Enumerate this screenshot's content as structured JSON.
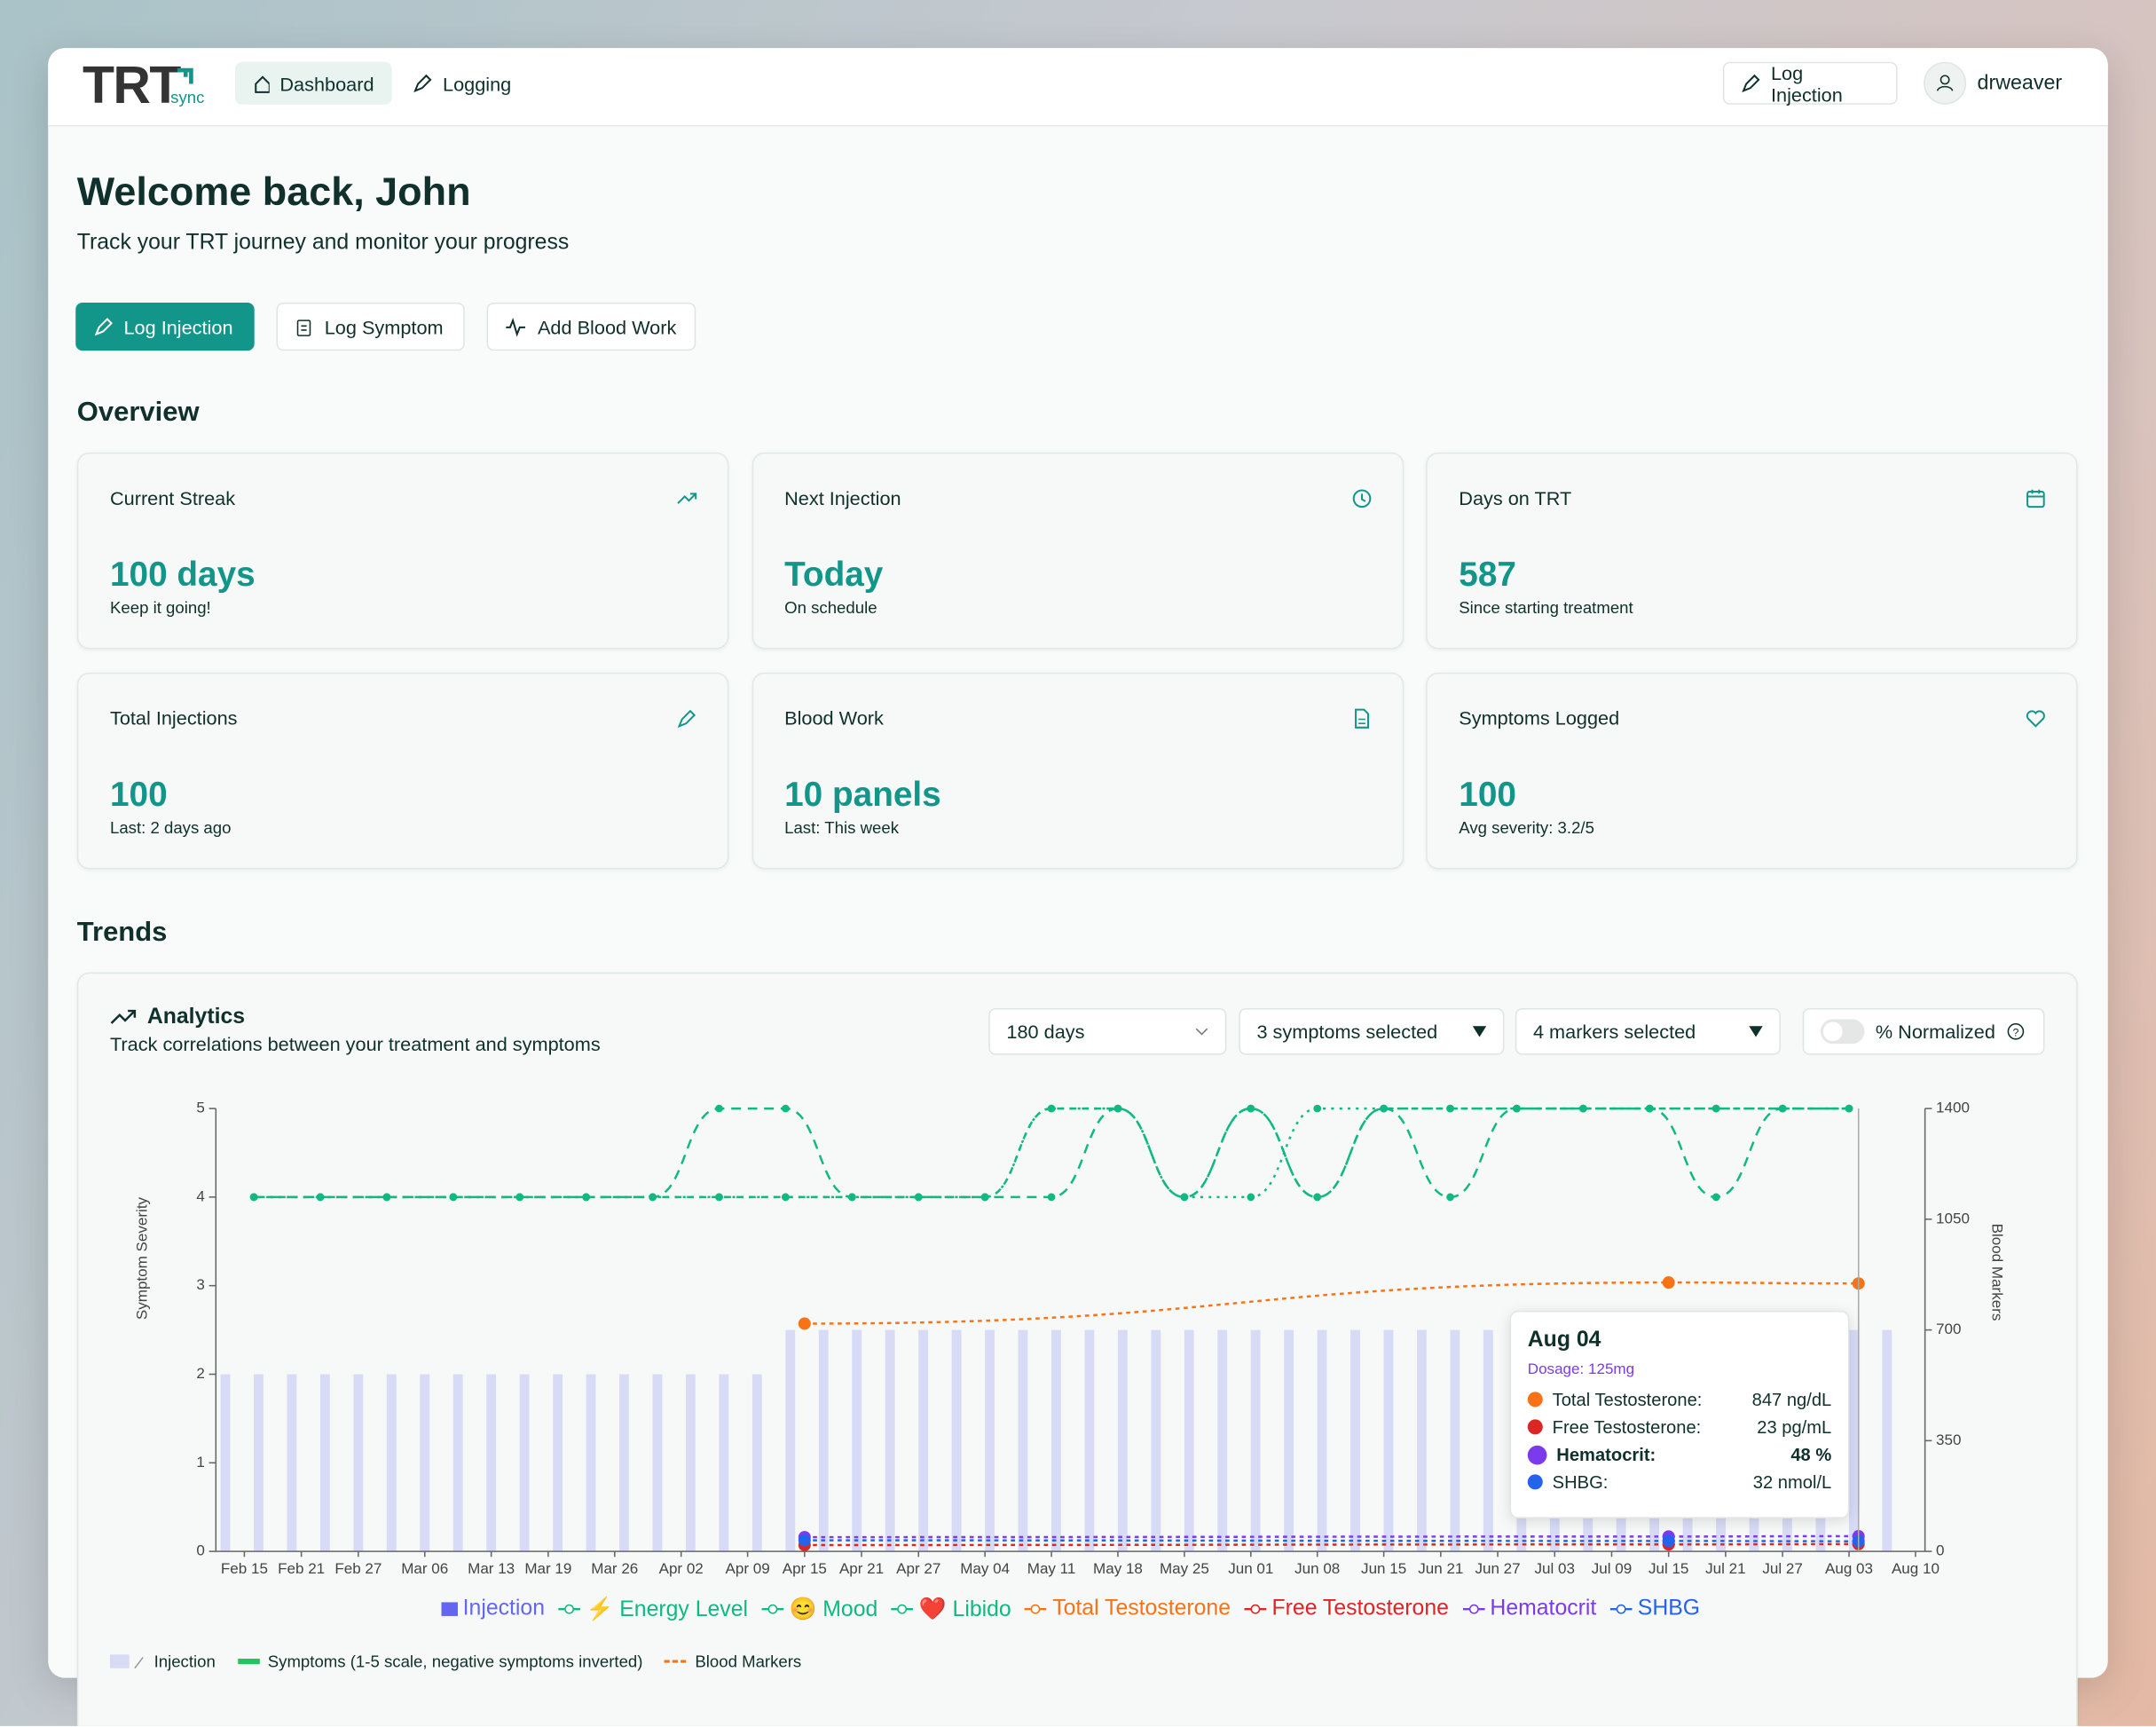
{
  "nav": {
    "brand": "TRT",
    "brand_sub": "sync",
    "links": [
      "Dashboard",
      "Logging"
    ],
    "action": "Log Injection",
    "user": "drweaver"
  },
  "header": {
    "title": "Welcome back, John",
    "subtitle": "Track your TRT journey and monitor your progress"
  },
  "actions": [
    "Log Injection",
    "Log Symptom",
    "Add Blood Work"
  ],
  "overview": {
    "title": "Overview",
    "cards": [
      {
        "label": "Current Streak",
        "value": "100 days",
        "note": "Keep it going!"
      },
      {
        "label": "Next Injection",
        "value": "Today",
        "note": "On schedule"
      },
      {
        "label": "Days on TRT",
        "value": "587",
        "note": "Since starting treatment"
      },
      {
        "label": "Total Injections",
        "value": "100",
        "note": "Last: 2 days ago"
      },
      {
        "label": "Blood Work",
        "value": "10 panels",
        "note": "Last: This week"
      },
      {
        "label": "Symptoms Logged",
        "value": "100",
        "note": "Avg severity: 3.2/5"
      }
    ]
  },
  "trends": {
    "title": "Trends",
    "panel": {
      "title": "Analytics",
      "subtitle": "Track correlations between your treatment and symptoms",
      "range": "180 days",
      "symptoms": "3 symptoms selected",
      "markers": "4 markers selected",
      "toggle": "% Normalized"
    }
  },
  "chart_data": {
    "type": "combo",
    "ylabel": "Symptom Severity",
    "y2label": "Blood Markers",
    "xlim": [
      43,
      223
    ],
    "xticks": [
      {
        "value": 46,
        "label": "Feb 15"
      },
      {
        "value": 52,
        "label": "Feb 21"
      },
      {
        "value": 58,
        "label": "Feb 27"
      },
      {
        "value": 65,
        "label": "Mar 06"
      },
      {
        "value": 72,
        "label": "Mar 13"
      },
      {
        "value": 78,
        "label": "Mar 19"
      },
      {
        "value": 85,
        "label": "Mar 26"
      },
      {
        "value": 92,
        "label": "Apr 02"
      },
      {
        "value": 99,
        "label": "Apr 09"
      },
      {
        "value": 105,
        "label": "Apr 15"
      },
      {
        "value": 111,
        "label": "Apr 21"
      },
      {
        "value": 117,
        "label": "Apr 27"
      },
      {
        "value": 124,
        "label": "May 04"
      },
      {
        "value": 131,
        "label": "May 11"
      },
      {
        "value": 138,
        "label": "May 18"
      },
      {
        "value": 145,
        "label": "May 25"
      },
      {
        "value": 152,
        "label": "Jun 01"
      },
      {
        "value": 159,
        "label": "Jun 08"
      },
      {
        "value": 166,
        "label": "Jun 15"
      },
      {
        "value": 172,
        "label": "Jun 21"
      },
      {
        "value": 178,
        "label": "Jun 27"
      },
      {
        "value": 184,
        "label": "Jul 03"
      },
      {
        "value": 190,
        "label": "Jul 09"
      },
      {
        "value": 196,
        "label": "Jul 15"
      },
      {
        "value": 202,
        "label": "Jul 21"
      },
      {
        "value": 208,
        "label": "Jul 27"
      },
      {
        "value": 215,
        "label": "Aug 03"
      },
      {
        "value": 222,
        "label": "Aug 10"
      }
    ],
    "ylim": [
      0,
      5
    ],
    "yticks": [
      0,
      1,
      2,
      3,
      4,
      5
    ],
    "y2lim": [
      0,
      1400
    ],
    "y2ticks": [
      0,
      350,
      700,
      1050,
      1400
    ],
    "series": [
      {
        "name": "Injection",
        "type": "bar",
        "color": "#6366f1",
        "x": [
          44,
          47.5,
          51,
          54.5,
          58,
          61.5,
          65,
          68.5,
          72,
          75.5,
          79,
          82.5,
          86,
          89.5,
          93,
          96.5,
          100,
          103.5,
          107,
          110.5,
          114,
          117.5,
          121,
          124.5,
          128,
          131.5,
          135,
          138.5,
          142,
          145.5,
          149,
          152.5,
          156,
          159.5,
          163,
          166.5,
          170,
          173.5,
          177,
          180.5,
          184,
          187.5,
          191,
          194.5,
          198,
          201.5,
          205,
          208.5,
          212,
          215.5,
          219
        ],
        "values": [
          2,
          2,
          2,
          2,
          2,
          2,
          2,
          2,
          2,
          2,
          2,
          2,
          2,
          2,
          2,
          2,
          2,
          2.5,
          2.5,
          2.5,
          2.5,
          2.5,
          2.5,
          2.5,
          2.5,
          2.5,
          2.5,
          2.5,
          2.5,
          2.5,
          2.5,
          2.5,
          2.5,
          2.5,
          2.5,
          2.5,
          2.5,
          2.5,
          2.5,
          2.5,
          2.5,
          2.5,
          2.5,
          2.5,
          2.5,
          2.5,
          2.5,
          2.5,
          2.5,
          2.5,
          2.5
        ]
      },
      {
        "name": "⚡ Energy Level",
        "type": "line",
        "color": "#10b981",
        "x": [
          47,
          54,
          61,
          68,
          75,
          82,
          89,
          96,
          103,
          110,
          117,
          124,
          131,
          138,
          145,
          152,
          159,
          166,
          173,
          180,
          187,
          194,
          201,
          208,
          215
        ],
        "values": [
          4,
          4,
          4,
          4,
          4,
          4,
          4,
          5,
          5,
          4,
          4,
          4,
          4,
          5,
          4,
          5,
          4,
          5,
          4,
          5,
          5,
          5,
          4,
          5,
          5
        ]
      },
      {
        "name": "😊 Mood",
        "type": "line",
        "color": "#10b981",
        "x": [
          47,
          54,
          61,
          68,
          75,
          82,
          89,
          96,
          103,
          110,
          117,
          124,
          131,
          138,
          145,
          152,
          159,
          166,
          173,
          180,
          187,
          194,
          201,
          208,
          215
        ],
        "values": [
          4,
          4,
          4,
          4,
          4,
          4,
          4,
          4,
          4,
          4,
          4,
          4,
          5,
          5,
          4,
          4,
          5,
          5,
          5,
          5,
          5,
          5,
          5,
          5,
          5
        ]
      },
      {
        "name": "❤️ Libido",
        "type": "line",
        "color": "#10b981",
        "x": [
          47,
          54,
          61,
          68,
          75,
          82,
          89,
          96,
          103,
          110,
          117,
          124,
          131,
          138,
          145,
          152,
          159,
          166,
          173,
          180,
          187,
          194,
          201,
          208,
          215
        ],
        "values": [
          4,
          4,
          4,
          4,
          4,
          4,
          4,
          4,
          4,
          4,
          4,
          4,
          5,
          5,
          4,
          5,
          4,
          5,
          5,
          5,
          5,
          5,
          5,
          5,
          5
        ]
      },
      {
        "name": "Total Testosterone",
        "type": "line",
        "axis": "y2",
        "color": "#f97316",
        "x": [
          105,
          196,
          216
        ],
        "values": [
          720,
          850,
          847
        ]
      },
      {
        "name": "Free Testosterone",
        "type": "line",
        "axis": "y2",
        "color": "#dc2626",
        "x": [
          105,
          196,
          216
        ],
        "values": [
          20,
          22,
          23
        ]
      },
      {
        "name": "Hematocrit",
        "type": "line",
        "axis": "y2",
        "color": "#7c3aed",
        "x": [
          105,
          196,
          216
        ],
        "values": [
          45,
          47,
          48
        ]
      },
      {
        "name": "SHBG",
        "type": "line",
        "axis": "y2",
        "color": "#2563eb",
        "x": [
          105,
          196,
          216
        ],
        "values": [
          35,
          33,
          32
        ]
      }
    ],
    "tooltip": {
      "title": "Aug 04",
      "dosage": "Dosage: 125mg",
      "rows": [
        {
          "label": "Total Testosterone:",
          "value": "847 ng/dL"
        },
        {
          "label": "Free Testosterone:",
          "value": "23 pg/mL"
        },
        {
          "label": "Hematocrit:",
          "value": "48 %"
        },
        {
          "label": "SHBG:",
          "value": "32 nmol/L"
        }
      ]
    },
    "key": [
      "Injection",
      "Symptoms (1-5 scale, negative symptoms inverted)",
      "Blood Markers"
    ]
  }
}
